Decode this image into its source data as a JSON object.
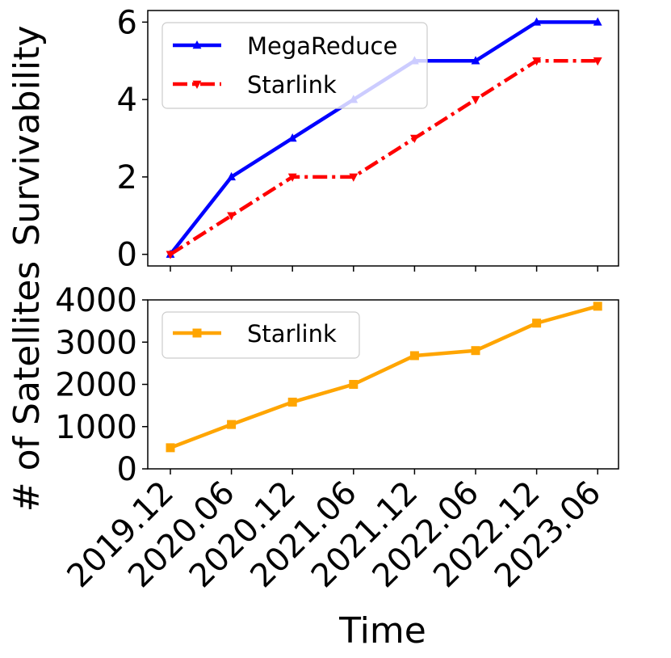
{
  "chart_data": [
    {
      "type": "line",
      "x": [
        "2019.12",
        "2020.06",
        "2020.12",
        "2021.06",
        "2021.12",
        "2022.06",
        "2022.12",
        "2023.06"
      ],
      "series": [
        {
          "name": "MegaReduce",
          "values": [
            0,
            2,
            3,
            4,
            5,
            5,
            6,
            6
          ],
          "color": "#0000ff",
          "marker": "triangle-up",
          "linestyle": "solid"
        },
        {
          "name": "Starlink",
          "values": [
            0,
            1,
            2,
            2,
            3,
            4,
            5,
            5
          ],
          "color": "#ff0000",
          "marker": "triangle-down",
          "linestyle": "dashdot"
        }
      ],
      "ylabel": "Survivability",
      "yticks": [
        0,
        2,
        4,
        6
      ],
      "ylim": [
        -0.3,
        6.3
      ],
      "legend": "top-left"
    },
    {
      "type": "line",
      "x": [
        "2019.12",
        "2020.06",
        "2020.12",
        "2021.06",
        "2021.12",
        "2022.06",
        "2022.12",
        "2023.06"
      ],
      "series": [
        {
          "name": "Starlink",
          "values": [
            500,
            1050,
            1580,
            2000,
            2680,
            2800,
            3450,
            3850
          ],
          "color": "#ffa500",
          "marker": "square",
          "linestyle": "solid"
        }
      ],
      "ylabel": "# of Satellites",
      "yticks": [
        0,
        1000,
        2000,
        3000,
        4000
      ],
      "yticklabels": [
        "0",
        "1000",
        "2000",
        "3000",
        "4000"
      ],
      "ylim": [
        0,
        4000
      ],
      "xlabel": "Time",
      "legend": "top-left"
    }
  ]
}
